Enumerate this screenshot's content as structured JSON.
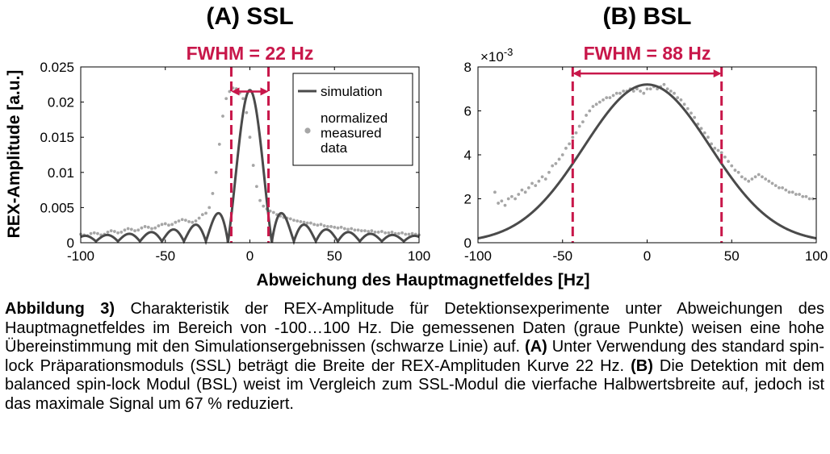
{
  "figure": {
    "xlabel": "Abweichung des Hauptmagnetfeldes [Hz]",
    "ylabel": "REX-Amplitude [a.u.]"
  },
  "chart_data": [
    {
      "type": "line",
      "panel": "A",
      "title": "(A) SSL",
      "xlabel": "Abweichung des Hauptmagnetfeldes [Hz]",
      "ylabel": "REX-Amplitude [a.u.]",
      "xlim": [
        -100,
        100
      ],
      "ylim": [
        0,
        0.025
      ],
      "x_ticks": [
        -100,
        -50,
        0,
        50,
        100
      ],
      "x_tick_labels": [
        "-100",
        "-50",
        "0",
        "50",
        "100"
      ],
      "y_ticks": [
        0,
        0.005,
        0.01,
        0.015,
        0.02,
        0.025
      ],
      "y_tick_labels": [
        "0",
        "0.005",
        "0.01",
        "0.015",
        "0.02",
        "0.025"
      ],
      "grid": false,
      "legend": {
        "position": "top-right",
        "entries": [
          "simulation",
          "normalized\nmeasured\ndata"
        ]
      },
      "fwhm": {
        "label": "FWHM = 22 Hz",
        "x_left": -11,
        "x_right": 11,
        "arrow_y": 0.0215
      },
      "series": [
        {
          "name": "simulation",
          "style": "line",
          "color": "#4a4a4a",
          "model": "sinc",
          "peak": 0.0217,
          "center": 0,
          "first_zero": 13,
          "abs_floor": 0.0012
        },
        {
          "name": "normalized\nmeasured\ndata",
          "style": "points",
          "color": "#a6a6a6",
          "x_min": -100,
          "x_max": 100,
          "x_step": 2,
          "values": [
            0.0012,
            0.0011,
            0.001,
            0.0013,
            0.0014,
            0.0013,
            0.0011,
            0.0012,
            0.0015,
            0.0017,
            0.0016,
            0.0014,
            0.0015,
            0.0018,
            0.002,
            0.0019,
            0.0017,
            0.0018,
            0.0021,
            0.0023,
            0.0022,
            0.002,
            0.0021,
            0.0024,
            0.0026,
            0.0027,
            0.0025,
            0.0026,
            0.0029,
            0.0031,
            0.0033,
            0.0032,
            0.003,
            0.0029,
            0.0031,
            0.0035,
            0.004,
            0.0042,
            0.005,
            0.007,
            0.01,
            0.014,
            0.018,
            0.0205,
            0.0215,
            0.022,
            0.0219,
            0.0213,
            0.0205,
            0.0185,
            0.015,
            0.011,
            0.008,
            0.006,
            0.0052,
            0.0048,
            0.0045,
            0.0043,
            0.004,
            0.0038,
            0.0036,
            0.0035,
            0.0034,
            0.0032,
            0.0031,
            0.003,
            0.0029,
            0.0028,
            0.0028,
            0.0026,
            0.0025,
            0.0026,
            0.0024,
            0.0023,
            0.0023,
            0.0022,
            0.0021,
            0.0022,
            0.002,
            0.0019,
            0.002,
            0.0018,
            0.0018,
            0.0017,
            0.0017,
            0.0016,
            0.0017,
            0.0015,
            0.0015,
            0.0016,
            0.0014,
            0.0014,
            0.0015,
            0.0013,
            0.0013,
            0.0014,
            0.0012,
            0.0012,
            0.0013,
            0.0012,
            0.0011
          ]
        }
      ]
    },
    {
      "type": "line",
      "panel": "B",
      "title": "(B) BSL",
      "xlabel": "Abweichung des Hauptmagnetfeldes [Hz]",
      "ylabel": "REX-Amplitude [a.u.]",
      "xlim": [
        -100,
        100
      ],
      "ylim": [
        0,
        0.008
      ],
      "y_exponent_label": "×10",
      "y_exponent": "-3",
      "x_ticks": [
        -100,
        -50,
        0,
        50,
        100
      ],
      "x_tick_labels": [
        "-100",
        "-50",
        "0",
        "50",
        "100"
      ],
      "y_ticks": [
        0,
        0.002,
        0.004,
        0.006,
        0.008
      ],
      "y_tick_labels": [
        "0",
        "2",
        "4",
        "6",
        "8"
      ],
      "grid": false,
      "fwhm": {
        "label": "FWHM = 88 Hz",
        "x_left": -44,
        "x_right": 44,
        "arrow_y": 0.0077
      },
      "series": [
        {
          "name": "simulation",
          "style": "line",
          "color": "#4a4a4a",
          "model": "gaussian",
          "peak": 0.0072,
          "center": 0,
          "fwhm": 88
        },
        {
          "name": "normalized measured data",
          "style": "points",
          "color": "#a6a6a6",
          "x_min": -90,
          "x_max": 98,
          "x_step": 2,
          "values": [
            0.0023,
            0.0018,
            0.0019,
            0.0017,
            0.002,
            0.0021,
            0.002,
            0.0022,
            0.0024,
            0.0023,
            0.0025,
            0.0027,
            0.0026,
            0.0028,
            0.003,
            0.0029,
            0.0032,
            0.0035,
            0.0036,
            0.0038,
            0.004,
            0.0043,
            0.0045,
            0.0048,
            0.005,
            0.0053,
            0.0055,
            0.0058,
            0.006,
            0.0062,
            0.0063,
            0.0064,
            0.0065,
            0.0066,
            0.0066,
            0.0067,
            0.0068,
            0.0068,
            0.0069,
            0.0069,
            0.007,
            0.0069,
            0.007,
            0.0069,
            0.0068,
            0.007,
            0.007,
            0.0071,
            0.007,
            0.0071,
            0.0072,
            0.007,
            0.0069,
            0.0068,
            0.0066,
            0.0065,
            0.0063,
            0.0061,
            0.0059,
            0.0057,
            0.0054,
            0.0052,
            0.005,
            0.0048,
            0.0045,
            0.0043,
            0.0042,
            0.0041,
            0.0039,
            0.0037,
            0.0035,
            0.0033,
            0.0032,
            0.003,
            0.0029,
            0.0028,
            0.0029,
            0.003,
            0.0031,
            0.003,
            0.0029,
            0.0028,
            0.0027,
            0.0026,
            0.0025,
            0.0025,
            0.0024,
            0.0023,
            0.0023,
            0.0022,
            0.0022,
            0.0021,
            0.0021,
            0.002,
            0.002
          ]
        }
      ]
    }
  ],
  "caption": {
    "label": "Abbildung 3)",
    "part1": " Charakteristik der REX-Amplitude für Detektionsexperimente unter Abweichungen des Hauptmagnetfeldes im Bereich von -100…100 Hz. Die gemessenen Daten (graue Punkte) weisen eine hohe Übereinstimmung mit den Simulationsergebnissen (schwarze Linie) auf. ",
    "a_label": "(A)",
    "part2": " Unter Verwendung des standard spin-lock Präparationsmoduls (SSL) beträgt die Breite der REX-Amplituden Kurve 22 Hz. ",
    "b_label": "(B)",
    "part3": " Die Detektion mit dem balanced spin-lock Modul (BSL) weist im Vergleich zum SSL-Modul die vierfache Halbwertsbreite auf, jedoch ist das maximale Signal um 67 % reduziert."
  },
  "colors": {
    "accent": "#c8174a",
    "simulation": "#4a4a4a",
    "measured": "#a6a6a6",
    "axis": "#000000"
  }
}
